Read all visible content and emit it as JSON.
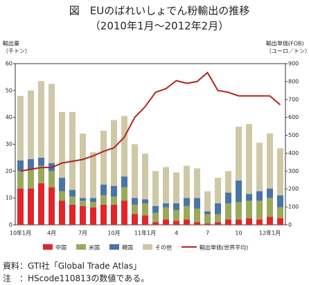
{
  "chart_data": {
    "type": "bar",
    "stacked": true,
    "title": "図　EUのばれいしょでん粉輸出の推移",
    "subtitle": "（2010年1月～2012年2月）",
    "y_label": [
      "輸出量",
      "（千トン）"
    ],
    "y2_label": [
      "輸出単価(FOB)",
      "（ユーロ／トン）"
    ],
    "categories": [
      "10年1月",
      null,
      null,
      "4月",
      null,
      null,
      "7月",
      null,
      null,
      "10月",
      null,
      null,
      "11年1月",
      null,
      null,
      "4",
      null,
      null,
      "7",
      null,
      null,
      "10",
      null,
      null,
      "12年1月",
      null
    ],
    "series": [
      {
        "name": "中国",
        "color": "#e0262b",
        "values": [
          13.5,
          13.5,
          15.5,
          14,
          9,
          7.5,
          7,
          6.5,
          7.5,
          7.5,
          9,
          4,
          3.5,
          1,
          2,
          1.5,
          2,
          1,
          0.5,
          1,
          2,
          2,
          2.5,
          2,
          3,
          2.5
        ]
      },
      {
        "name": "米国",
        "color": "#9aaa5a",
        "values": [
          6.5,
          7,
          6.5,
          6,
          3.5,
          3,
          2,
          2,
          3.5,
          3,
          5,
          3.5,
          4.5,
          3.5,
          4.5,
          4,
          5,
          5,
          3.5,
          3,
          6,
          6.5,
          6.5,
          7,
          7,
          4
        ]
      },
      {
        "name": "韓国",
        "color": "#4a74a8",
        "values": [
          4,
          4,
          3,
          3,
          5,
          2.5,
          1,
          1.5,
          4,
          4,
          4,
          2.5,
          1.5,
          2.5,
          1.5,
          2.5,
          3,
          4,
          1,
          4,
          4,
          8,
          2.5,
          3.5,
          3.5,
          4.5
        ]
      },
      {
        "name": "その他",
        "color": "#cfc8a6",
        "values": [
          24,
          25.5,
          28.5,
          29.5,
          24.5,
          29,
          24,
          17,
          20,
          24.5,
          22.5,
          20,
          17,
          13,
          13.5,
          11.5,
          12,
          11,
          7.5,
          9.5,
          8,
          20,
          26,
          18,
          20.5,
          17.5
        ]
      },
      {
        "name": "輸出単価(世界平均)",
        "color": "#b22222",
        "type": "line",
        "axis": "y2",
        "values": [
          300,
          310,
          320,
          320,
          345,
          355,
          365,
          385,
          410,
          430,
          490,
          600,
          660,
          740,
          760,
          805,
          790,
          800,
          850,
          750,
          740,
          720,
          720,
          720,
          720,
          670
        ]
      }
    ],
    "ylim": [
      0,
      60
    ],
    "yticks": [
      0,
      10,
      20,
      30,
      40,
      50,
      60
    ],
    "y2lim": [
      0,
      900
    ],
    "y2ticks": [
      0,
      100,
      200,
      300,
      400,
      500,
      600,
      700,
      800,
      900
    ]
  },
  "notes": [
    "資料：GTI社「Global Trade Atlas」",
    "注　：HScode110813の数値である。"
  ]
}
